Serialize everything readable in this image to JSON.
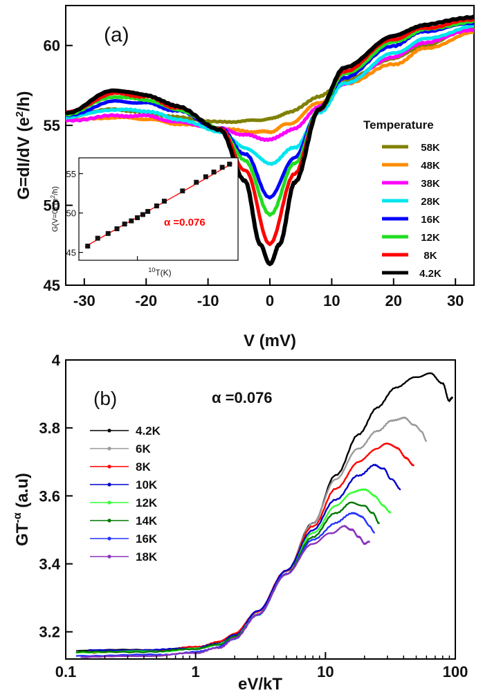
{
  "chart_data": [
    {
      "type": "line",
      "panel_label": "(a)",
      "xlabel": "V (mV)",
      "ylabel": "G=dI/dV (e",
      "ylabel_sup": "2",
      "ylabel_tail": "/h)",
      "xlim": [
        -33,
        33
      ],
      "ylim": [
        45,
        62.5
      ],
      "xticks": [
        "-30",
        "-20",
        "-10",
        "0",
        "10",
        "20",
        "30"
      ],
      "yticks": [
        "45",
        "50",
        "55",
        "60"
      ],
      "legend_title": "Temperature",
      "legend_position": "right",
      "series": [
        {
          "name": "58K",
          "color": "#808000",
          "points": [
            [
              -33,
              55.6
            ],
            [
              -25,
              56.0
            ],
            [
              -20,
              55.8
            ],
            [
              -15,
              55.5
            ],
            [
              -8,
              55.2
            ],
            [
              -3,
              55.3
            ],
            [
              0,
              55.4
            ],
            [
              3,
              55.8
            ],
            [
              8,
              56.8
            ],
            [
              12,
              57.8
            ],
            [
              20,
              59.2
            ],
            [
              25,
              60.0
            ],
            [
              33,
              61.2
            ]
          ]
        },
        {
          "name": "48K",
          "color": "#ff8c00",
          "points": [
            [
              -33,
              55.3
            ],
            [
              -25,
              55.5
            ],
            [
              -20,
              55.4
            ],
            [
              -15,
              55.1
            ],
            [
              -8,
              54.8
            ],
            [
              -3,
              54.6
            ],
            [
              0,
              54.6
            ],
            [
              3,
              55.1
            ],
            [
              8,
              56.4
            ],
            [
              12,
              57.6
            ],
            [
              20,
              58.8
            ],
            [
              25,
              59.8
            ],
            [
              33,
              60.8
            ]
          ]
        },
        {
          "name": "38K",
          "color": "#ff00ff",
          "points": [
            [
              -33,
              55.3
            ],
            [
              -25,
              55.6
            ],
            [
              -20,
              55.6
            ],
            [
              -15,
              55.2
            ],
            [
              -8,
              54.8
            ],
            [
              -4,
              54.4
            ],
            [
              0,
              54.1
            ],
            [
              4,
              54.8
            ],
            [
              8,
              56.2
            ],
            [
              12,
              57.6
            ],
            [
              20,
              59.3
            ],
            [
              25,
              60.2
            ],
            [
              33,
              61.0
            ]
          ]
        },
        {
          "name": "28K",
          "color": "#00e5ee",
          "points": [
            [
              -33,
              55.5
            ],
            [
              -25,
              56.0
            ],
            [
              -20,
              55.9
            ],
            [
              -15,
              55.4
            ],
            [
              -8,
              54.6
            ],
            [
              -4,
              53.6
            ],
            [
              0,
              52.6
            ],
            [
              4,
              53.6
            ],
            [
              8,
              55.8
            ],
            [
              12,
              57.6
            ],
            [
              20,
              59.5
            ],
            [
              25,
              60.4
            ],
            [
              33,
              61.2
            ]
          ]
        },
        {
          "name": "16K",
          "color": "#0000ff",
          "points": [
            [
              -33,
              55.6
            ],
            [
              -25,
              56.5
            ],
            [
              -20,
              56.4
            ],
            [
              -15,
              55.9
            ],
            [
              -8,
              54.8
            ],
            [
              -4,
              53.2
            ],
            [
              0,
              50.5
            ],
            [
              4,
              53.0
            ],
            [
              8,
              56.0
            ],
            [
              12,
              58.0
            ],
            [
              20,
              60.0
            ],
            [
              25,
              60.9
            ],
            [
              33,
              61.4
            ]
          ]
        },
        {
          "name": "12K",
          "color": "#22dd22",
          "points": [
            [
              -33,
              55.7
            ],
            [
              -25,
              56.8
            ],
            [
              -20,
              56.6
            ],
            [
              -15,
              56.0
            ],
            [
              -8,
              54.8
            ],
            [
              -4,
              52.8
            ],
            [
              0,
              49.4
            ],
            [
              4,
              52.6
            ],
            [
              8,
              56.0
            ],
            [
              12,
              58.2
            ],
            [
              20,
              60.2
            ],
            [
              25,
              61.0
            ],
            [
              33,
              61.5
            ]
          ]
        },
        {
          "name": "8K",
          "color": "#ff0000",
          "points": [
            [
              -33,
              55.8
            ],
            [
              -25,
              57.0
            ],
            [
              -20,
              56.8
            ],
            [
              -15,
              56.1
            ],
            [
              -8,
              54.8
            ],
            [
              -4,
              52.2
            ],
            [
              0,
              47.6
            ],
            [
              4,
              52.0
            ],
            [
              8,
              56.0
            ],
            [
              12,
              58.4
            ],
            [
              20,
              60.4
            ],
            [
              25,
              61.1
            ],
            [
              33,
              61.6
            ]
          ]
        },
        {
          "name": "4.2K",
          "color": "#000000",
          "points": [
            [
              -33,
              55.8
            ],
            [
              -25,
              57.2
            ],
            [
              -20,
              56.9
            ],
            [
              -15,
              56.2
            ],
            [
              -8,
              54.7
            ],
            [
              -4,
              51.5
            ],
            [
              -1.5,
              47.5
            ],
            [
              0,
              46.3
            ],
            [
              1.5,
              47.5
            ],
            [
              4,
              51.4
            ],
            [
              8,
              56.0
            ],
            [
              12,
              58.6
            ],
            [
              20,
              60.6
            ],
            [
              25,
              61.3
            ],
            [
              33,
              61.8
            ]
          ]
        }
      ],
      "inset": {
        "type": "scatter",
        "xlabel_sup": "10",
        "xlabel": "T(K)",
        "ylabel": "G(V=0) (e",
        "ylabel_sup": "2",
        "ylabel_tail": "/h)",
        "yticks": [
          "45",
          "50",
          "55"
        ],
        "ylim": [
          44,
          57
        ],
        "x_log": true,
        "annotation": "α =0.076",
        "fit_color": "#ff0000",
        "points": [
          [
            4.2,
            45.8
          ],
          [
            5,
            46.8
          ],
          [
            6,
            47.4
          ],
          [
            7,
            48.0
          ],
          [
            8,
            48.6
          ],
          [
            9,
            49.0
          ],
          [
            10,
            49.4
          ],
          [
            11,
            49.8
          ],
          [
            12,
            50.2
          ],
          [
            14,
            50.9
          ],
          [
            16,
            51.5
          ],
          [
            22,
            52.8
          ],
          [
            28,
            53.9
          ],
          [
            33,
            54.6
          ],
          [
            38,
            55.2
          ],
          [
            44,
            55.8
          ],
          [
            50,
            56.2
          ]
        ]
      }
    },
    {
      "type": "line",
      "panel_label": "(b)",
      "annotation": "α =0.076",
      "xlabel": "eV/kT",
      "ylabel": "GT",
      "ylabel_sup": "-α",
      "ylabel_tail": " (a.u)",
      "x_log": true,
      "xlim": [
        0.1,
        100
      ],
      "ylim": [
        3.12,
        4.0
      ],
      "xticks": [
        "0.1",
        "1",
        "10",
        "100"
      ],
      "yticks": [
        "3.2",
        "3.4",
        "3.6",
        "3.8",
        "4"
      ],
      "legend_position": "top-left",
      "series": [
        {
          "name": "4.2K",
          "color": "#000000",
          "points": [
            [
              0.12,
              3.145
            ],
            [
              0.5,
              3.147
            ],
            [
              1,
              3.153
            ],
            [
              1.5,
              3.165
            ],
            [
              2,
              3.19
            ],
            [
              3,
              3.26
            ],
            [
              5,
              3.38
            ],
            [
              8,
              3.52
            ],
            [
              12,
              3.66
            ],
            [
              18,
              3.78
            ],
            [
              25,
              3.86
            ],
            [
              35,
              3.92
            ],
            [
              50,
              3.95
            ],
            [
              65,
              3.96
            ],
            [
              80,
              3.93
            ],
            [
              90,
              3.88
            ],
            [
              95,
              3.89
            ]
          ]
        },
        {
          "name": "6K",
          "color": "#999999",
          "points": [
            [
              0.12,
              3.14
            ],
            [
              0.5,
              3.145
            ],
            [
              1,
              3.152
            ],
            [
              1.5,
              3.165
            ],
            [
              2,
              3.19
            ],
            [
              3,
              3.26
            ],
            [
              5,
              3.38
            ],
            [
              8,
              3.52
            ],
            [
              12,
              3.65
            ],
            [
              18,
              3.74
            ],
            [
              25,
              3.79
            ],
            [
              32,
              3.82
            ],
            [
              40,
              3.83
            ],
            [
              48,
              3.81
            ],
            [
              55,
              3.79
            ],
            [
              60,
              3.76
            ]
          ]
        },
        {
          "name": "8K",
          "color": "#ff0000",
          "points": [
            [
              0.15,
              3.14
            ],
            [
              0.5,
              3.145
            ],
            [
              1,
              3.155
            ],
            [
              1.5,
              3.17
            ],
            [
              2,
              3.195
            ],
            [
              3,
              3.26
            ],
            [
              5,
              3.38
            ],
            [
              8,
              3.51
            ],
            [
              12,
              3.62
            ],
            [
              18,
              3.7
            ],
            [
              25,
              3.74
            ],
            [
              30,
              3.755
            ],
            [
              36,
              3.74
            ],
            [
              42,
              3.71
            ],
            [
              48,
              3.69
            ]
          ]
        },
        {
          "name": "10K",
          "color": "#0000cc",
          "points": [
            [
              0.15,
              3.145
            ],
            [
              0.5,
              3.147
            ],
            [
              1,
              3.152
            ],
            [
              1.5,
              3.165
            ],
            [
              2,
              3.19
            ],
            [
              3,
              3.26
            ],
            [
              5,
              3.38
            ],
            [
              8,
              3.5
            ],
            [
              12,
              3.59
            ],
            [
              18,
              3.66
            ],
            [
              24,
              3.69
            ],
            [
              28,
              3.68
            ],
            [
              32,
              3.65
            ],
            [
              38,
              3.62
            ]
          ]
        },
        {
          "name": "12K",
          "color": "#33ff33",
          "points": [
            [
              0.12,
              3.14
            ],
            [
              0.5,
              3.142
            ],
            [
              1,
              3.15
            ],
            [
              1.5,
              3.162
            ],
            [
              2,
              3.185
            ],
            [
              3,
              3.25
            ],
            [
              5,
              3.37
            ],
            [
              8,
              3.49
            ],
            [
              12,
              3.57
            ],
            [
              16,
              3.61
            ],
            [
              20,
              3.62
            ],
            [
              24,
              3.6
            ],
            [
              28,
              3.57
            ],
            [
              32,
              3.55
            ]
          ]
        },
        {
          "name": "14K",
          "color": "#007700",
          "points": [
            [
              0.12,
              3.14
            ],
            [
              0.5,
              3.142
            ],
            [
              1,
              3.15
            ],
            [
              1.5,
              3.162
            ],
            [
              2,
              3.185
            ],
            [
              3,
              3.25
            ],
            [
              5,
              3.37
            ],
            [
              8,
              3.48
            ],
            [
              12,
              3.55
            ],
            [
              16,
              3.58
            ],
            [
              20,
              3.57
            ],
            [
              23,
              3.55
            ],
            [
              26,
              3.52
            ]
          ]
        },
        {
          "name": "16K",
          "color": "#2233ff",
          "points": [
            [
              0.12,
              3.13
            ],
            [
              0.5,
              3.132
            ],
            [
              1,
              3.14
            ],
            [
              1.5,
              3.155
            ],
            [
              2,
              3.18
            ],
            [
              3,
              3.25
            ],
            [
              5,
              3.37
            ],
            [
              8,
              3.47
            ],
            [
              12,
              3.52
            ],
            [
              16,
              3.55
            ],
            [
              19,
              3.54
            ],
            [
              22,
              3.51
            ],
            [
              24,
              3.49
            ]
          ]
        },
        {
          "name": "18K",
          "color": "#8833bb",
          "points": [
            [
              0.13,
              3.125
            ],
            [
              0.5,
              3.13
            ],
            [
              1,
              3.138
            ],
            [
              1.5,
              3.152
            ],
            [
              2,
              3.18
            ],
            [
              3,
              3.25
            ],
            [
              5,
              3.37
            ],
            [
              8,
              3.46
            ],
            [
              11,
              3.49
            ],
            [
              14,
              3.51
            ],
            [
              16,
              3.5
            ],
            [
              18,
              3.48
            ],
            [
              20,
              3.46
            ],
            [
              22,
              3.465
            ]
          ]
        }
      ]
    }
  ]
}
